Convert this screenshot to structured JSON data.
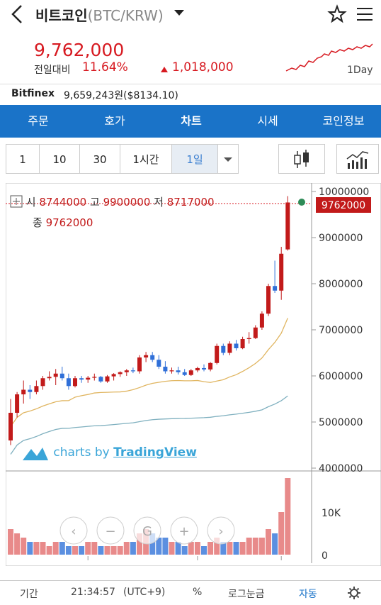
{
  "header": {
    "coin_name": "비트코인",
    "pair": "(BTC/KRW)"
  },
  "ticker": {
    "price": "9,762,000",
    "change_label": "전일대비",
    "change_pct": "11.64%",
    "change_amount": "1,018,000",
    "spark_range": "1Day"
  },
  "exchange": {
    "name": "Bitfinex",
    "price": "9,659,243원($8134.10)"
  },
  "tabs": [
    "주문",
    "호가",
    "차트",
    "시세",
    "코인정보"
  ],
  "active_tab": "차트",
  "intervals": [
    "1",
    "10",
    "30",
    "1시간",
    "1일"
  ],
  "selected_interval": "1일",
  "ohlc": {
    "open_label": "시",
    "open": "8744000",
    "high_label": "고",
    "high": "9900000",
    "low_label": "저",
    "low": "8717000",
    "close_label": "종",
    "close": "9762000"
  },
  "watermark": {
    "prefix": "charts by ",
    "brand": "TradingView"
  },
  "colors": {
    "up": "#c21a1a",
    "down": "#2f6fd8",
    "accent": "#1a73c8",
    "ma_short": "#e0b560",
    "ma_long": "#7fb0bf"
  },
  "chart_data": {
    "type": "candlestick",
    "price_axis": [
      "10000000",
      "9000000",
      "8000000",
      "7000000",
      "6000000",
      "5000000",
      "4000000"
    ],
    "ylim": [
      4000000,
      10000000
    ],
    "last_price_label": "9762000",
    "volume_axis": [
      "10K",
      "0"
    ],
    "x_ticks": [
      "14",
      "5월",
      "14"
    ],
    "candles": [
      [
        4600000,
        5500000,
        4500000,
        5200000
      ],
      [
        5200000,
        5650000,
        5100000,
        5600000
      ],
      [
        5600000,
        5900000,
        5400000,
        5700000
      ],
      [
        5700000,
        5800000,
        5500000,
        5650000
      ],
      [
        5650000,
        5900000,
        5600000,
        5780000
      ],
      [
        5780000,
        6000000,
        5700000,
        5950000
      ],
      [
        5950000,
        6100000,
        5900000,
        5980000
      ],
      [
        5980000,
        6150000,
        5800000,
        6050000
      ],
      [
        6050000,
        6200000,
        5900000,
        5950000
      ],
      [
        5950000,
        6050000,
        5700000,
        5780000
      ],
      [
        5780000,
        6000000,
        5750000,
        5950000
      ],
      [
        5950000,
        6000000,
        5850000,
        5920000
      ],
      [
        5920000,
        6000000,
        5850000,
        5960000
      ],
      [
        5960000,
        6050000,
        5900000,
        5980000
      ],
      [
        5980000,
        6000000,
        5850000,
        5880000
      ],
      [
        5880000,
        6020000,
        5850000,
        5990000
      ],
      [
        5990000,
        6060000,
        5900000,
        6040000
      ],
      [
        6040000,
        6100000,
        5980000,
        6080000
      ],
      [
        6080000,
        6150000,
        6000000,
        6120000
      ],
      [
        6120000,
        6180000,
        6060000,
        6100000
      ],
      [
        6100000,
        6450000,
        6050000,
        6400000
      ],
      [
        6400000,
        6520000,
        6300000,
        6450000
      ],
      [
        6450000,
        6520000,
        6300000,
        6350000
      ],
      [
        6350000,
        6450000,
        6150000,
        6200000
      ],
      [
        6200000,
        6320000,
        6050000,
        6100000
      ],
      [
        6100000,
        6180000,
        6050000,
        6120000
      ],
      [
        6120000,
        6200000,
        6030000,
        6080000
      ],
      [
        6080000,
        6150000,
        6000000,
        6020000
      ],
      [
        6020000,
        6150000,
        6000000,
        6120000
      ],
      [
        6120000,
        6200000,
        6080000,
        6170000
      ],
      [
        6170000,
        6250000,
        6100000,
        6140000
      ],
      [
        6140000,
        6300000,
        6100000,
        6280000
      ],
      [
        6280000,
        6700000,
        6250000,
        6650000
      ],
      [
        6650000,
        6700000,
        6450000,
        6500000
      ],
      [
        6500000,
        6750000,
        6450000,
        6700000
      ],
      [
        6700000,
        6780000,
        6550000,
        6600000
      ],
      [
        6600000,
        6850000,
        6580000,
        6800000
      ],
      [
        6800000,
        6950000,
        6700000,
        6820000
      ],
      [
        6820000,
        7100000,
        6800000,
        7050000
      ],
      [
        7050000,
        7400000,
        7000000,
        7350000
      ],
      [
        7350000,
        8000000,
        7300000,
        7950000
      ],
      [
        7950000,
        8500000,
        7800000,
        7850000
      ],
      [
        7850000,
        8800000,
        7650000,
        8650000
      ],
      [
        8744000,
        9900000,
        8717000,
        9762000
      ]
    ],
    "volumes": [
      6,
      5,
      4,
      3,
      3,
      3,
      2,
      3,
      3,
      2,
      2,
      2,
      3,
      3,
      2,
      2,
      2,
      2,
      3,
      3,
      5,
      6,
      5,
      4,
      4,
      3,
      3,
      2,
      3,
      3,
      2,
      3,
      4,
      3,
      3,
      3,
      3,
      4,
      4,
      4,
      6,
      5,
      10,
      18
    ]
  },
  "zoom_controls": [
    "‹",
    "−",
    "G",
    "+",
    "›"
  ],
  "footer": {
    "period": "기간",
    "time": "21:34:57",
    "tz": "(UTC+9)",
    "pct": "%",
    "log": "로그눈금",
    "auto": "자동"
  }
}
